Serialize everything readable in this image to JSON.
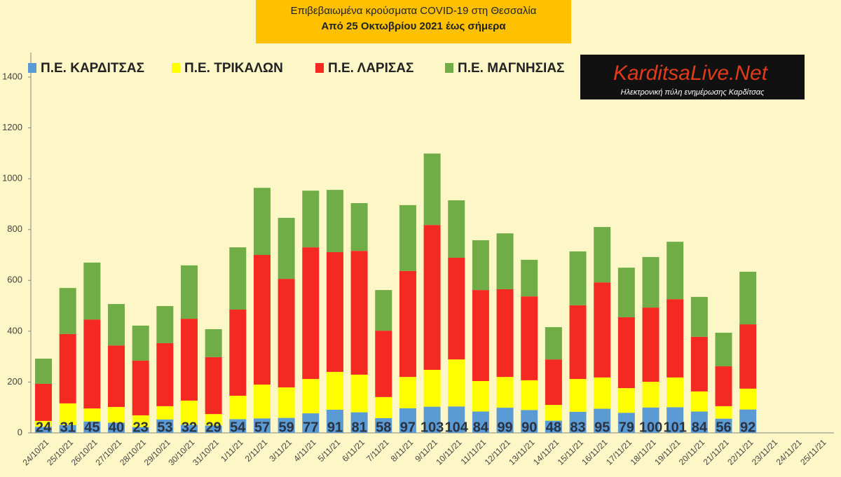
{
  "chart_data": {
    "type": "stacked-bar",
    "title": "Επιβεβαιωμένα κρούσματα COVID-19 στη Θεσσαλία",
    "subtitle": "Από 25 Οκτωβρίου 2021 έως σήμερα",
    "logo": {
      "title": "KarditsaLive.Net",
      "subtitle": "Ηλεκτρονική πύλη ενημέρωσης Καρδίτσας"
    },
    "categories": [
      "24/10/21",
      "25/10/21",
      "26/10/21",
      "27/10/21",
      "28/10/21",
      "29/10/21",
      "30/10/21",
      "31/10/21",
      "1/11/21",
      "2/11/21",
      "3/11/21",
      "4/11/21",
      "5/11/21",
      "6/11/21",
      "7/11/21",
      "8/11/21",
      "9/11/21",
      "10/11/21",
      "11/11/21",
      "12/11/21",
      "13/11/21",
      "14/11/21",
      "15/11/21",
      "16/11/21",
      "17/11/21",
      "18/11/21",
      "19/11/21",
      "20/11/21",
      "21/11/21",
      "22/11/21",
      "23/11/21",
      "24/11/21",
      "25/11/21"
    ],
    "series": [
      {
        "name": "Π.Ε. ΚΑΡΔΙΤΣΑΣ",
        "color": "#5b9bd5",
        "show_labels": true,
        "values": [
          24,
          31,
          45,
          40,
          23,
          53,
          32,
          29,
          54,
          57,
          59,
          77,
          91,
          81,
          58,
          97,
          103,
          104,
          84,
          99,
          90,
          48,
          83,
          95,
          79,
          100,
          101,
          84,
          56,
          92,
          null,
          null,
          null
        ]
      },
      {
        "name": "Π.Ε. ΤΡΙΚΑΛΩΝ",
        "color": "#ffff00",
        "values": [
          23,
          85,
          51,
          62,
          46,
          52,
          95,
          45,
          92,
          133,
          120,
          135,
          149,
          148,
          83,
          123,
          145,
          185,
          120,
          121,
          117,
          62,
          129,
          123,
          97,
          101,
          117,
          79,
          49,
          82,
          null,
          null,
          null
        ]
      },
      {
        "name": "Π.Ε. ΛΑΡΙΣΑΣ",
        "color": "#f42a22",
        "values": [
          146,
          273,
          350,
          242,
          215,
          248,
          322,
          224,
          339,
          510,
          427,
          518,
          471,
          487,
          261,
          417,
          570,
          400,
          358,
          345,
          330,
          179,
          290,
          374,
          279,
          292,
          308,
          215,
          157,
          253,
          null,
          null,
          null
        ]
      },
      {
        "name": "Π.Ε. ΜΑΓΝΗΣΙΑΣ",
        "color": "#70ad47",
        "values": [
          99,
          181,
          224,
          163,
          138,
          146,
          210,
          110,
          245,
          264,
          240,
          223,
          245,
          188,
          160,
          259,
          281,
          226,
          196,
          220,
          144,
          127,
          212,
          218,
          195,
          199,
          226,
          157,
          132,
          207,
          null,
          null,
          null
        ]
      }
    ],
    "ylim": [
      0,
      1500
    ],
    "yticks": [
      0,
      200,
      400,
      600,
      800,
      1000,
      1200,
      1400
    ],
    "grid": false
  }
}
